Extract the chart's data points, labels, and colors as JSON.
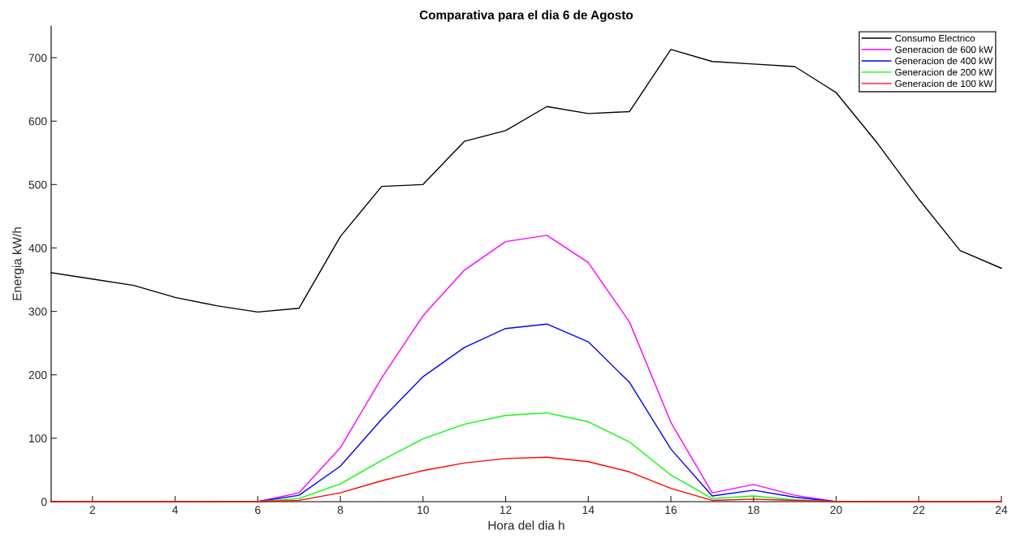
{
  "chart_data": {
    "type": "line",
    "title": "Comparativa para el dia 6 de Agosto",
    "xlabel": "Hora del dia h",
    "ylabel": "Energia kW/h",
    "x": [
      1,
      2,
      3,
      4,
      5,
      6,
      7,
      8,
      9,
      10,
      11,
      12,
      13,
      14,
      15,
      16,
      17,
      18,
      19,
      20,
      21,
      22,
      23,
      24
    ],
    "series": [
      {
        "name": "Consumo Electrico",
        "color": "#000000",
        "values": [
          361,
          351,
          341,
          322,
          309,
          299,
          305,
          418,
          497,
          500,
          568,
          585,
          623,
          612,
          615,
          713,
          694,
          690,
          686,
          645,
          565,
          477,
          396,
          368
        ]
      },
      {
        "name": "Generacion de 600 kW",
        "color": "#ff00ff",
        "values": [
          null,
          null,
          null,
          null,
          0,
          0,
          14,
          85,
          195,
          293,
          365,
          410,
          420,
          377,
          283,
          125,
          14,
          27,
          10,
          0,
          0,
          null,
          null,
          null
        ]
      },
      {
        "name": "Generacion de 400 kW",
        "color": "#0000ff",
        "values": [
          null,
          null,
          null,
          null,
          0,
          0,
          10,
          56,
          130,
          197,
          243,
          273,
          280,
          252,
          188,
          83,
          9,
          18,
          7,
          0,
          0,
          null,
          null,
          null
        ]
      },
      {
        "name": "Generacion de 200 kW",
        "color": "#00ff00",
        "values": [
          null,
          null,
          null,
          null,
          0,
          0,
          5,
          28,
          65,
          99,
          122,
          136,
          140,
          126,
          94,
          42,
          5,
          9,
          3,
          0,
          0,
          null,
          null,
          null
        ]
      },
      {
        "name": "Generacion de 100 kW",
        "color": "#ff0000",
        "values": [
          0,
          0,
          0,
          0,
          0,
          0,
          2,
          14,
          33,
          49,
          61,
          68,
          70,
          63,
          47,
          21,
          2,
          4,
          2,
          0,
          0,
          0,
          0,
          0
        ]
      }
    ],
    "xlim": [
      1,
      24
    ],
    "xticks": [
      2,
      4,
      6,
      8,
      10,
      12,
      14,
      16,
      18,
      20,
      22,
      24
    ],
    "ylim": [
      0,
      750
    ],
    "yticks": [
      0,
      100,
      200,
      300,
      400,
      500,
      600,
      700
    ],
    "grid": false,
    "legend": "top right",
    "marker": "none",
    "line_style": "solid"
  }
}
